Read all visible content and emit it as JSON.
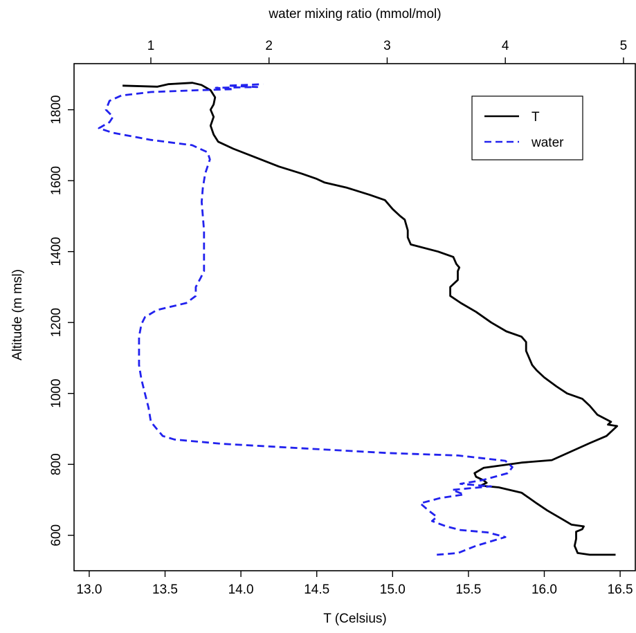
{
  "chart_data": {
    "type": "line",
    "xlabel": "T (Celsius)",
    "ylabel": "Altitude (m msl)",
    "top_xlabel": "water mixing ratio (mmol/mol)",
    "xlim": [
      12.9,
      16.6
    ],
    "ylim": [
      500,
      1930
    ],
    "top_xlim": [
      0.35,
      5.1
    ],
    "x_ticks": [
      "13.0",
      "13.5",
      "14.0",
      "14.5",
      "15.0",
      "15.5",
      "16.0",
      "16.5"
    ],
    "y_ticks": [
      "600",
      "800",
      "1000",
      "1200",
      "1400",
      "1600",
      "1800"
    ],
    "top_ticks": [
      "1",
      "2",
      "3",
      "4",
      "5"
    ],
    "grid": false,
    "legend": {
      "position": "top-right",
      "entries": [
        "T",
        "water"
      ]
    },
    "series": [
      {
        "name": "T",
        "axis": "bottom",
        "color": "#000000",
        "style": "solid",
        "points": [
          [
            16.47,
            545
          ],
          [
            16.3,
            545
          ],
          [
            16.22,
            550
          ],
          [
            16.21,
            560
          ],
          [
            16.2,
            570
          ],
          [
            16.21,
            590
          ],
          [
            16.21,
            610
          ],
          [
            16.25,
            617
          ],
          [
            16.26,
            625
          ],
          [
            16.18,
            630
          ],
          [
            16.12,
            645
          ],
          [
            16.02,
            670
          ],
          [
            15.95,
            690
          ],
          [
            15.9,
            705
          ],
          [
            15.85,
            720
          ],
          [
            15.7,
            735
          ],
          [
            15.58,
            740
          ],
          [
            15.62,
            748
          ],
          [
            15.6,
            755
          ],
          [
            15.55,
            765
          ],
          [
            15.54,
            775
          ],
          [
            15.6,
            790
          ],
          [
            15.85,
            805
          ],
          [
            16.05,
            812
          ],
          [
            16.3,
            860
          ],
          [
            16.41,
            880
          ],
          [
            16.46,
            900
          ],
          [
            16.48,
            908
          ],
          [
            16.42,
            912
          ],
          [
            16.44,
            920
          ],
          [
            16.35,
            940
          ],
          [
            16.3,
            965
          ],
          [
            16.25,
            985
          ],
          [
            16.15,
            1000
          ],
          [
            16.08,
            1020
          ],
          [
            16.0,
            1045
          ],
          [
            15.95,
            1065
          ],
          [
            15.92,
            1080
          ],
          [
            15.9,
            1100
          ],
          [
            15.88,
            1120
          ],
          [
            15.88,
            1145
          ],
          [
            15.85,
            1160
          ],
          [
            15.75,
            1175
          ],
          [
            15.65,
            1200
          ],
          [
            15.55,
            1230
          ],
          [
            15.45,
            1255
          ],
          [
            15.38,
            1275
          ],
          [
            15.38,
            1300
          ],
          [
            15.43,
            1320
          ],
          [
            15.43,
            1345
          ],
          [
            15.44,
            1355
          ],
          [
            15.42,
            1365
          ],
          [
            15.4,
            1385
          ],
          [
            15.3,
            1400
          ],
          [
            15.12,
            1420
          ],
          [
            15.1,
            1440
          ],
          [
            15.1,
            1460
          ],
          [
            15.08,
            1490
          ],
          [
            15.05,
            1500
          ],
          [
            15.0,
            1520
          ],
          [
            14.95,
            1545
          ],
          [
            14.85,
            1560
          ],
          [
            14.7,
            1580
          ],
          [
            14.55,
            1595
          ],
          [
            14.5,
            1605
          ],
          [
            14.4,
            1620
          ],
          [
            14.25,
            1640
          ],
          [
            14.1,
            1665
          ],
          [
            13.95,
            1690
          ],
          [
            13.85,
            1710
          ],
          [
            13.82,
            1730
          ],
          [
            13.8,
            1755
          ],
          [
            13.82,
            1780
          ],
          [
            13.8,
            1800
          ],
          [
            13.82,
            1815
          ],
          [
            13.83,
            1835
          ],
          [
            13.8,
            1855
          ],
          [
            13.74,
            1870
          ],
          [
            13.68,
            1876
          ],
          [
            13.52,
            1872
          ],
          [
            13.45,
            1865
          ],
          [
            13.22,
            1868
          ]
        ]
      },
      {
        "name": "water",
        "axis": "top",
        "color": "#2222ee",
        "style": "dashed",
        "points": [
          [
            3.42,
            545
          ],
          [
            3.6,
            550
          ],
          [
            3.75,
            570
          ],
          [
            3.9,
            585
          ],
          [
            4.0,
            595
          ],
          [
            3.85,
            608
          ],
          [
            3.62,
            615
          ],
          [
            3.5,
            625
          ],
          [
            3.38,
            640
          ],
          [
            3.42,
            652
          ],
          [
            3.35,
            670
          ],
          [
            3.28,
            690
          ],
          [
            3.45,
            705
          ],
          [
            3.65,
            715
          ],
          [
            3.55,
            728
          ],
          [
            3.88,
            738
          ],
          [
            3.62,
            745
          ],
          [
            3.8,
            755
          ],
          [
            4.02,
            775
          ],
          [
            4.06,
            792
          ],
          [
            4.0,
            810
          ],
          [
            3.6,
            825
          ],
          [
            3.0,
            832
          ],
          [
            2.3,
            845
          ],
          [
            1.6,
            858
          ],
          [
            1.2,
            870
          ],
          [
            1.1,
            880
          ],
          [
            1.05,
            900
          ],
          [
            1.0,
            920
          ],
          [
            0.98,
            960
          ],
          [
            0.95,
            1000
          ],
          [
            0.92,
            1040
          ],
          [
            0.9,
            1080
          ],
          [
            0.9,
            1120
          ],
          [
            0.9,
            1160
          ],
          [
            0.92,
            1195
          ],
          [
            0.95,
            1215
          ],
          [
            1.05,
            1235
          ],
          [
            1.3,
            1255
          ],
          [
            1.38,
            1275
          ],
          [
            1.38,
            1300
          ],
          [
            1.42,
            1325
          ],
          [
            1.45,
            1345
          ],
          [
            1.45,
            1380
          ],
          [
            1.45,
            1420
          ],
          [
            1.45,
            1460
          ],
          [
            1.44,
            1500
          ],
          [
            1.43,
            1540
          ],
          [
            1.44,
            1580
          ],
          [
            1.46,
            1620
          ],
          [
            1.5,
            1660
          ],
          [
            1.48,
            1680
          ],
          [
            1.35,
            1700
          ],
          [
            1.0,
            1715
          ],
          [
            0.68,
            1735
          ],
          [
            0.56,
            1748
          ],
          [
            0.65,
            1765
          ],
          [
            0.68,
            1780
          ],
          [
            0.62,
            1800
          ],
          [
            0.65,
            1825
          ],
          [
            0.75,
            1840
          ],
          [
            1.0,
            1850
          ],
          [
            1.4,
            1855
          ],
          [
            1.7,
            1858
          ],
          [
            1.55,
            1862
          ],
          [
            1.9,
            1864
          ],
          [
            1.65,
            1868
          ],
          [
            1.95,
            1872
          ]
        ]
      }
    ]
  }
}
